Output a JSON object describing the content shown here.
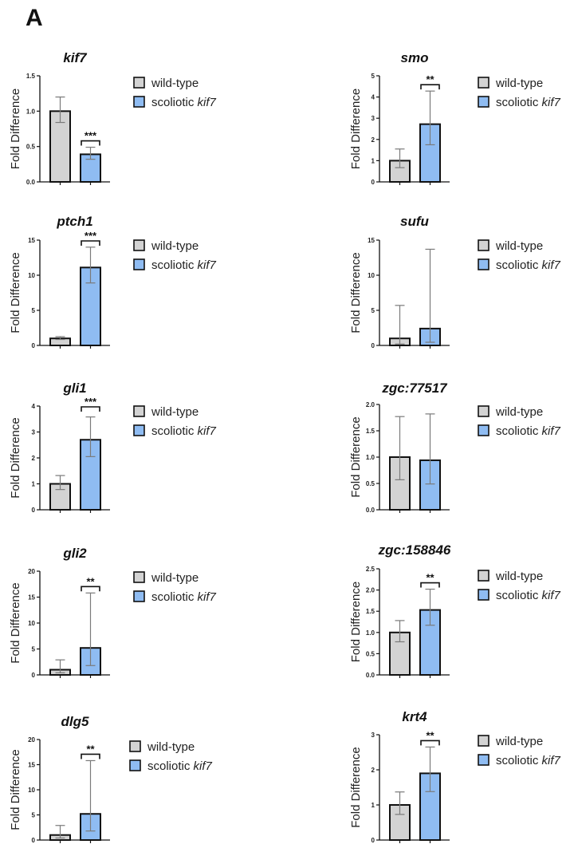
{
  "panel_label": "A",
  "colors": {
    "wild_type": "#d3d3d3",
    "scoliotic": "#8fbcf2",
    "outline": "#111111",
    "error_bar": "#7a7a7a"
  },
  "chart_data": [
    {
      "type": "bar",
      "title": "kif7",
      "ylabel": "Fold  Difference",
      "ylim": [
        0,
        1.5
      ],
      "yticks": [
        "0.0",
        "0.5",
        "1.0",
        "1.5"
      ],
      "tick_values": [
        0,
        0.5,
        1.0,
        1.5
      ],
      "categories": [
        "wild-type",
        "scoliotic kif7"
      ],
      "values": [
        1.0,
        0.39
      ],
      "error_low": [
        0.84,
        0.32
      ],
      "error_high": [
        1.2,
        0.49
      ],
      "significance": "***",
      "legend": [
        "wild-type",
        "scoliotic kif7"
      ],
      "legend_position": "right"
    },
    {
      "type": "bar",
      "title": "smo",
      "ylabel": "Fold Difference",
      "ylim": [
        0,
        5
      ],
      "yticks": [
        "0",
        "1",
        "2",
        "3",
        "4",
        "5"
      ],
      "tick_values": [
        0,
        1,
        2,
        3,
        4,
        5
      ],
      "categories": [
        "wild-type",
        "scoliotic kif7"
      ],
      "values": [
        1.0,
        2.72
      ],
      "error_low": [
        0.67,
        1.75
      ],
      "error_high": [
        1.55,
        4.28
      ],
      "significance": "**",
      "legend": [
        "wild-type",
        "scoliotic kif7"
      ],
      "legend_position": "right"
    },
    {
      "type": "bar",
      "title": "ptch1",
      "ylabel": "Fold  Difference",
      "ylim": [
        0,
        15
      ],
      "yticks": [
        "0",
        "5",
        "10",
        "15"
      ],
      "tick_values": [
        0,
        5,
        10,
        15
      ],
      "categories": [
        "wild-type",
        "scoliotic kif7"
      ],
      "values": [
        1.0,
        11.1
      ],
      "error_low": [
        0.85,
        8.9
      ],
      "error_high": [
        1.25,
        14.0
      ],
      "significance": "***",
      "legend": [
        "wild-type",
        "scoliotic kif7"
      ],
      "legend_position": "right"
    },
    {
      "type": "bar",
      "title": "sufu",
      "ylabel": "Fold Difference",
      "ylim": [
        0,
        15
      ],
      "yticks": [
        "0",
        "5",
        "10",
        "15"
      ],
      "tick_values": [
        0,
        5,
        10,
        15
      ],
      "categories": [
        "wild-type",
        "scoliotic kif7"
      ],
      "values": [
        1.0,
        2.4
      ],
      "error_low": [
        0.2,
        0.45
      ],
      "error_high": [
        5.7,
        13.7
      ],
      "significance": "",
      "legend": [
        "wild-type",
        "scoliotic kif7"
      ],
      "legend_position": "right"
    },
    {
      "type": "bar",
      "title": "gli1",
      "ylabel": "Fold  Difference",
      "ylim": [
        0,
        4
      ],
      "yticks": [
        "0",
        "1",
        "2",
        "3",
        "4"
      ],
      "tick_values": [
        0,
        1,
        2,
        3,
        4
      ],
      "categories": [
        "wild-type",
        "scoliotic kif7"
      ],
      "values": [
        1.0,
        2.7
      ],
      "error_low": [
        0.78,
        2.05
      ],
      "error_high": [
        1.32,
        3.58
      ],
      "significance": "***",
      "legend": [
        "wild-type",
        "scoliotic kif7"
      ],
      "legend_position": "right"
    },
    {
      "type": "bar",
      "title": "zgc:77517",
      "ylabel": "Fold Difference",
      "ylim": [
        0,
        2.0
      ],
      "yticks": [
        "0.0",
        "0.5",
        "1.0",
        "1.5",
        "2.0"
      ],
      "tick_values": [
        0,
        0.5,
        1.0,
        1.5,
        2.0
      ],
      "categories": [
        "wild-type",
        "scoliotic kif7"
      ],
      "values": [
        1.0,
        0.94
      ],
      "error_low": [
        0.57,
        0.49
      ],
      "error_high": [
        1.77,
        1.82
      ],
      "significance": "",
      "legend": [
        "wild-type",
        "scoliotic kif7"
      ],
      "legend_position": "right"
    },
    {
      "type": "bar",
      "title": "gli2",
      "ylabel": "Fold Difference",
      "ylim": [
        0,
        20
      ],
      "yticks": [
        "0",
        "5",
        "10",
        "15",
        "20"
      ],
      "tick_values": [
        0,
        5,
        10,
        15,
        20
      ],
      "categories": [
        "wild-type",
        "scoliotic kif7"
      ],
      "values": [
        1.0,
        5.2
      ],
      "error_low": [
        0.4,
        1.8
      ],
      "error_high": [
        2.9,
        15.8
      ],
      "significance": "**",
      "legend": [
        "wild-type",
        "scoliotic kif7"
      ],
      "legend_position": "right"
    },
    {
      "type": "bar",
      "title": "zgc:158846",
      "ylabel": "Fold Difference",
      "ylim": [
        0,
        2.5
      ],
      "yticks": [
        "0.0",
        "0.5",
        "1.0",
        "1.5",
        "2.0",
        "2.5"
      ],
      "tick_values": [
        0,
        0.5,
        1.0,
        1.5,
        2.0,
        2.5
      ],
      "categories": [
        "wild-type",
        "scoliotic kif7"
      ],
      "values": [
        1.0,
        1.53
      ],
      "error_low": [
        0.78,
        1.17
      ],
      "error_high": [
        1.28,
        2.02
      ],
      "significance": "**",
      "legend": [
        "wild-type",
        "scoliotic kif7"
      ],
      "legend_position": "right"
    },
    {
      "type": "bar",
      "title": "dlg5",
      "ylabel": "Fold Difference",
      "ylim": [
        0,
        20
      ],
      "yticks": [
        "0",
        "5",
        "10",
        "15",
        "20"
      ],
      "tick_values": [
        0,
        5,
        10,
        15,
        20
      ],
      "categories": [
        "wild-type",
        "scoliotic kif7"
      ],
      "values": [
        1.0,
        5.2
      ],
      "error_low": [
        0.4,
        1.8
      ],
      "error_high": [
        2.9,
        15.8
      ],
      "significance": "**",
      "legend": [
        "wild-type",
        "scoliotic kif7"
      ],
      "legend_position": "right"
    },
    {
      "type": "bar",
      "title": "krt4",
      "ylabel": "Fold Difference",
      "ylim": [
        0,
        3
      ],
      "yticks": [
        "0",
        "1",
        "2",
        "3"
      ],
      "tick_values": [
        0,
        1,
        2,
        3
      ],
      "categories": [
        "wild-type",
        "scoliotic kif7"
      ],
      "values": [
        1.0,
        1.9
      ],
      "error_low": [
        0.73,
        1.38
      ],
      "error_high": [
        1.37,
        2.65
      ],
      "significance": "**",
      "legend": [
        "wild-type",
        "scoliotic kif7"
      ],
      "legend_position": "right"
    }
  ]
}
